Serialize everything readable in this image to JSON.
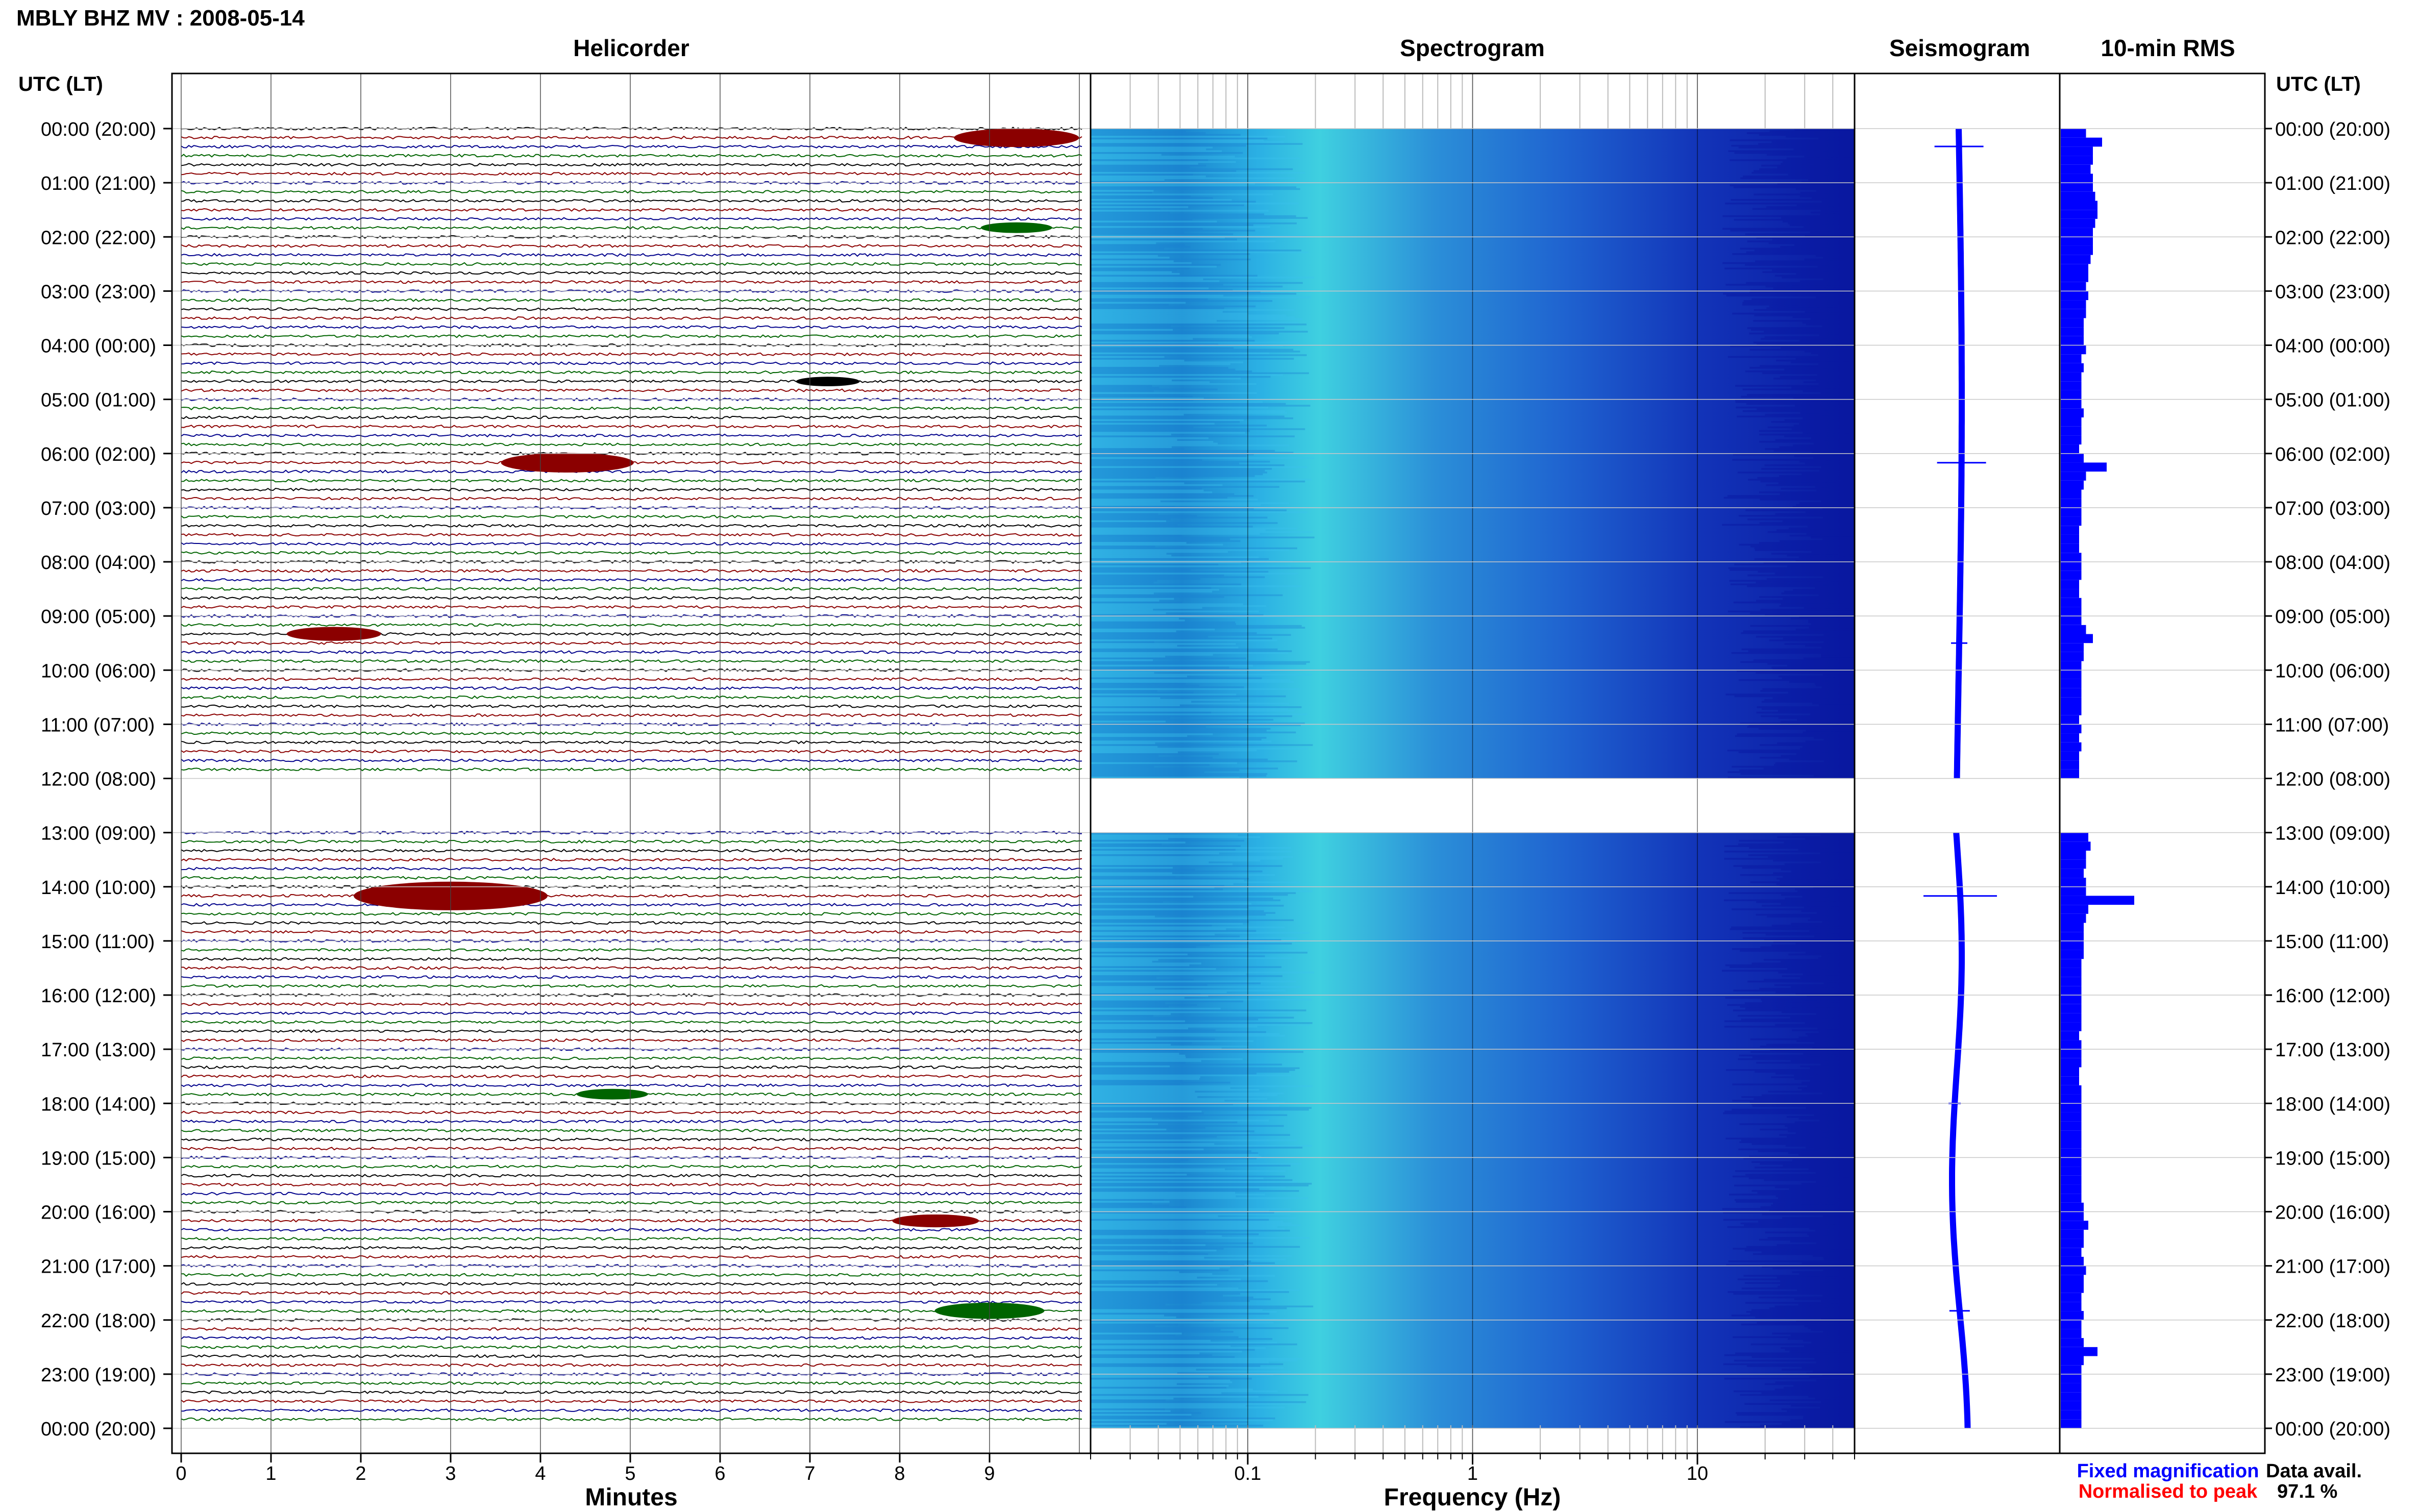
{
  "header": {
    "title": "MBLY BHZ MV : 2008-05-14",
    "left_axis_heading": "UTC (LT)",
    "right_axis_heading": "UTC (LT)"
  },
  "panels": {
    "helicorder": "Helicorder",
    "spectrogram": "Spectrogram",
    "seismogram": "Seismogram",
    "rms": "10-min RMS"
  },
  "time_labels": [
    "00:00 (20:00)",
    "01:00 (21:00)",
    "02:00 (22:00)",
    "03:00 (23:00)",
    "04:00 (00:00)",
    "05:00 (01:00)",
    "06:00 (02:00)",
    "07:00 (03:00)",
    "08:00 (04:00)",
    "09:00 (05:00)",
    "10:00 (06:00)",
    "11:00 (07:00)",
    "12:00 (08:00)",
    "13:00 (09:00)",
    "14:00 (10:00)",
    "15:00 (11:00)",
    "16:00 (12:00)",
    "17:00 (13:00)",
    "18:00 (14:00)",
    "19:00 (15:00)",
    "20:00 (16:00)",
    "21:00 (17:00)",
    "22:00 (18:00)",
    "23:00 (19:00)",
    "00:00 (20:00)"
  ],
  "helicorder_axis": {
    "label": "Minutes",
    "ticks": [
      "0",
      "1",
      "2",
      "3",
      "4",
      "5",
      "6",
      "7",
      "8",
      "9"
    ]
  },
  "spectrogram_axis": {
    "label": "Frequency (Hz)",
    "ticks": [
      "0.1",
      "1",
      "10"
    ]
  },
  "legend": {
    "fixed": "Fixed magnification",
    "normalised": "Normalised to peak"
  },
  "data_avail": {
    "label": "Data avail.",
    "value": "97.1 %"
  },
  "colors": {
    "trace_black": "#000000",
    "trace_red": "#8b0000",
    "trace_blue": "#00008b",
    "trace_green": "#006400",
    "spec_low": "#1fa3d8",
    "spec_high": "#0a1ea0",
    "seismo": "#0000ff",
    "rms_bar": "#0000ff",
    "legend_fixed": "#0000ff",
    "legend_normalised": "#ff0000"
  },
  "chart_data": [
    {
      "type": "line",
      "title": "Helicorder",
      "xlabel": "Minutes",
      "x_range": [
        0,
        10
      ],
      "rows_per_hour": 6,
      "trace_colors_cycle": [
        "black",
        "red",
        "blue",
        "green"
      ],
      "data_gap_utc_hours": [
        12.0,
        13.0
      ],
      "events": [
        {
          "utc_hour": 0.17,
          "minute": 9.3,
          "color": "red",
          "strength": 0.55
        },
        {
          "utc_hour": 1.83,
          "minute": 9.3,
          "color": "green",
          "strength": 0.2
        },
        {
          "utc_hour": 4.67,
          "minute": 7.2,
          "color": "black",
          "strength": 0.15
        },
        {
          "utc_hour": 6.17,
          "minute": 4.3,
          "color": "red",
          "strength": 0.6
        },
        {
          "utc_hour": 9.33,
          "minute": 1.7,
          "color": "red",
          "strength": 0.35
        },
        {
          "utc_hour": 14.17,
          "minute": 3.0,
          "color": "red",
          "strength": 1.0
        },
        {
          "utc_hour": 17.83,
          "minute": 4.8,
          "color": "green",
          "strength": 0.2
        },
        {
          "utc_hour": 20.17,
          "minute": 8.4,
          "color": "red",
          "strength": 0.3
        },
        {
          "utc_hour": 21.83,
          "minute": 9.0,
          "color": "green",
          "strength": 0.45
        }
      ]
    },
    {
      "type": "heatmap",
      "title": "Spectrogram",
      "xlabel": "Frequency (Hz)",
      "x_scale": "log",
      "xlim": [
        0.02,
        50
      ],
      "x_ticks": [
        0.1,
        1,
        10
      ],
      "y": "UTC hours 0-24",
      "data_gap_utc_hours": [
        12.0,
        13.0
      ]
    },
    {
      "type": "line",
      "title": "Seismogram",
      "spikes": [
        {
          "utc_hour": 0.33,
          "amplitude": 0.6
        },
        {
          "utc_hour": 6.17,
          "amplitude": 0.6
        },
        {
          "utc_hour": 9.5,
          "amplitude": 0.2
        },
        {
          "utc_hour": 14.17,
          "amplitude": 0.9
        },
        {
          "utc_hour": 18.0,
          "amplitude": 0.15
        },
        {
          "utc_hour": 21.83,
          "amplitude": 0.25
        }
      ]
    },
    {
      "type": "bar",
      "title": "10-min RMS",
      "orientation": "horizontal",
      "bin_minutes": 10,
      "data_gap_utc_hours": [
        12.0,
        13.0
      ],
      "values_by_hour": [
        [
          0.55,
          0.9,
          0.7,
          0.7,
          0.65,
          0.7
        ],
        [
          0.7,
          0.75,
          0.8,
          0.8,
          0.75,
          0.7
        ],
        [
          0.7,
          0.7,
          0.65,
          0.6,
          0.6,
          0.55
        ],
        [
          0.6,
          0.55,
          0.55,
          0.5,
          0.5,
          0.5
        ],
        [
          0.55,
          0.45,
          0.5,
          0.45,
          0.45,
          0.45
        ],
        [
          0.45,
          0.5,
          0.45,
          0.45,
          0.45,
          0.4
        ],
        [
          0.5,
          1.0,
          0.55,
          0.5,
          0.45,
          0.45
        ],
        [
          0.45,
          0.45,
          0.4,
          0.4,
          0.4,
          0.45
        ],
        [
          0.45,
          0.45,
          0.4,
          0.4,
          0.45,
          0.45
        ],
        [
          0.45,
          0.55,
          0.7,
          0.5,
          0.5,
          0.45
        ],
        [
          0.45,
          0.45,
          0.45,
          0.45,
          0.45,
          0.4
        ],
        [
          0.45,
          0.4,
          0.45,
          0.4,
          0.4,
          0.4
        ],
        [
          0,
          0,
          0,
          0,
          0,
          0
        ],
        [
          0.6,
          0.65,
          0.55,
          0.55,
          0.5,
          0.55
        ],
        [
          0.55,
          1.6,
          0.6,
          0.55,
          0.5,
          0.5
        ],
        [
          0.5,
          0.5,
          0.45,
          0.45,
          0.45,
          0.45
        ],
        [
          0.45,
          0.45,
          0.45,
          0.45,
          0.4,
          0.45
        ],
        [
          0.45,
          0.45,
          0.4,
          0.4,
          0.45,
          0.45
        ],
        [
          0.45,
          0.45,
          0.45,
          0.45,
          0.45,
          0.45
        ],
        [
          0.45,
          0.45,
          0.45,
          0.45,
          0.45,
          0.5
        ],
        [
          0.5,
          0.6,
          0.5,
          0.5,
          0.45,
          0.5
        ],
        [
          0.55,
          0.5,
          0.5,
          0.45,
          0.45,
          0.5
        ],
        [
          0.45,
          0.45,
          0.5,
          0.8,
          0.5,
          0.45
        ],
        [
          0.45,
          0.45,
          0.45,
          0.45,
          0.45,
          0.45
        ]
      ]
    }
  ]
}
